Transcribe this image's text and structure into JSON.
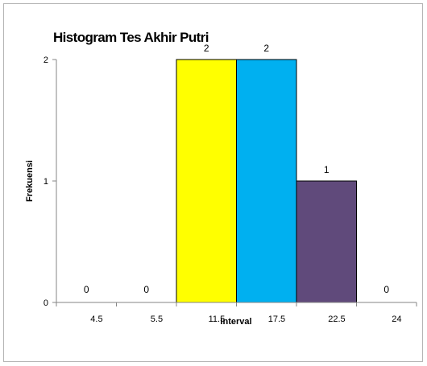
{
  "chart_data": {
    "type": "bar",
    "title": "Histogram Tes Akhir Putri",
    "xlabel": "Interval",
    "ylabel": "Frekuensi",
    "categories": [
      "4.5",
      "5.5",
      "11.5",
      "17.5",
      "22.5",
      "24"
    ],
    "x_ticks": [
      "4.5",
      "5.5",
      "11.5",
      "17.5",
      "22.5",
      "24"
    ],
    "values": [
      0,
      0,
      2,
      2,
      1,
      0
    ],
    "bar_colors": [
      "#ffffff",
      "#ffffff",
      "#ffff00",
      "#00b0f0",
      "#604a7b",
      "#ffffff"
    ],
    "data_labels": [
      "0",
      "0",
      "2",
      "2",
      "1",
      "0"
    ],
    "y_ticks": [
      "0",
      "1",
      "2"
    ],
    "ylim": [
      0,
      2
    ],
    "grid": false,
    "legend": "none"
  }
}
